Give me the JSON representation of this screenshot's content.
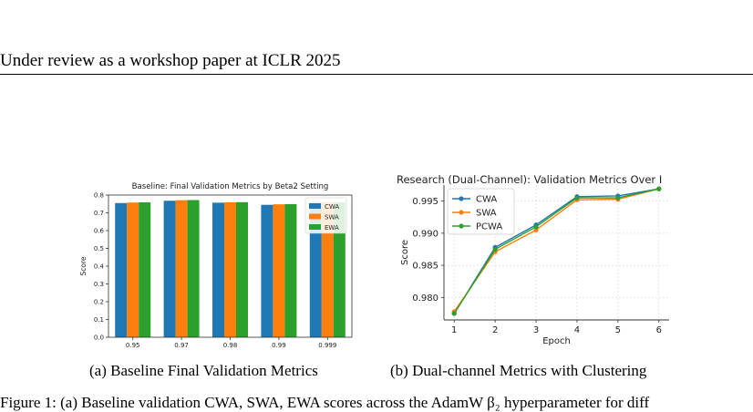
{
  "page": {
    "header": "Under review as a workshop paper at ICLR 2025",
    "caption_a": "(a)  Baseline Final Validation Metrics",
    "caption_b": "(b)  Dual-channel Metrics with Clustering",
    "body_text": "Figure 1: (a) Baseline validation CWA, SWA, EWA scores across the AdamW β₂ hyperparameter for diff"
  },
  "chart_data": [
    {
      "type": "bar",
      "title": "Baseline: Final Validation Metrics by Beta2 Setting",
      "xlabel": "",
      "ylabel": "Score",
      "ylim": [
        0,
        0.8
      ],
      "yticks": [
        "0.0",
        "0.1",
        "0.2",
        "0.3",
        "0.4",
        "0.5",
        "0.6",
        "0.7",
        "0.8"
      ],
      "categories": [
        "0.95",
        "0.97",
        "0.98",
        "0.99",
        "0.999"
      ],
      "series": [
        {
          "name": "CWA",
          "color": "#1f77b4",
          "values": [
            0.755,
            0.768,
            0.757,
            0.745,
            0.76
          ]
        },
        {
          "name": "SWA",
          "color": "#ff7f0e",
          "values": [
            0.758,
            0.771,
            0.759,
            0.748,
            0.76
          ]
        },
        {
          "name": "EWA",
          "color": "#2ca02c",
          "values": [
            0.759,
            0.772,
            0.76,
            0.749,
            0.76
          ]
        }
      ],
      "legend": "upper-right",
      "grid": false
    },
    {
      "type": "line",
      "title": "Research (Dual-Channel): Validation Metrics Over I",
      "xlabel": "Epoch",
      "ylabel": "Score",
      "x": [
        1,
        2,
        3,
        4,
        5,
        6
      ],
      "xlim": [
        0.75,
        6.25
      ],
      "ylim": [
        0.9765,
        0.9975
      ],
      "yticks": [
        "0.980",
        "0.985",
        "0.990",
        "0.995"
      ],
      "series": [
        {
          "name": "CWA",
          "color": "#1f77b4",
          "values": [
            0.9775,
            0.9878,
            0.9913,
            0.9957,
            0.9958,
            0.9969
          ]
        },
        {
          "name": "SWA",
          "color": "#ff7f0e",
          "values": [
            0.9778,
            0.9871,
            0.9905,
            0.9952,
            0.9953,
            0.9969
          ]
        },
        {
          "name": "PCWA",
          "color": "#2ca02c",
          "values": [
            0.9775,
            0.9875,
            0.991,
            0.9955,
            0.9955,
            0.9969
          ]
        }
      ],
      "legend": "upper-left",
      "grid": true
    }
  ]
}
